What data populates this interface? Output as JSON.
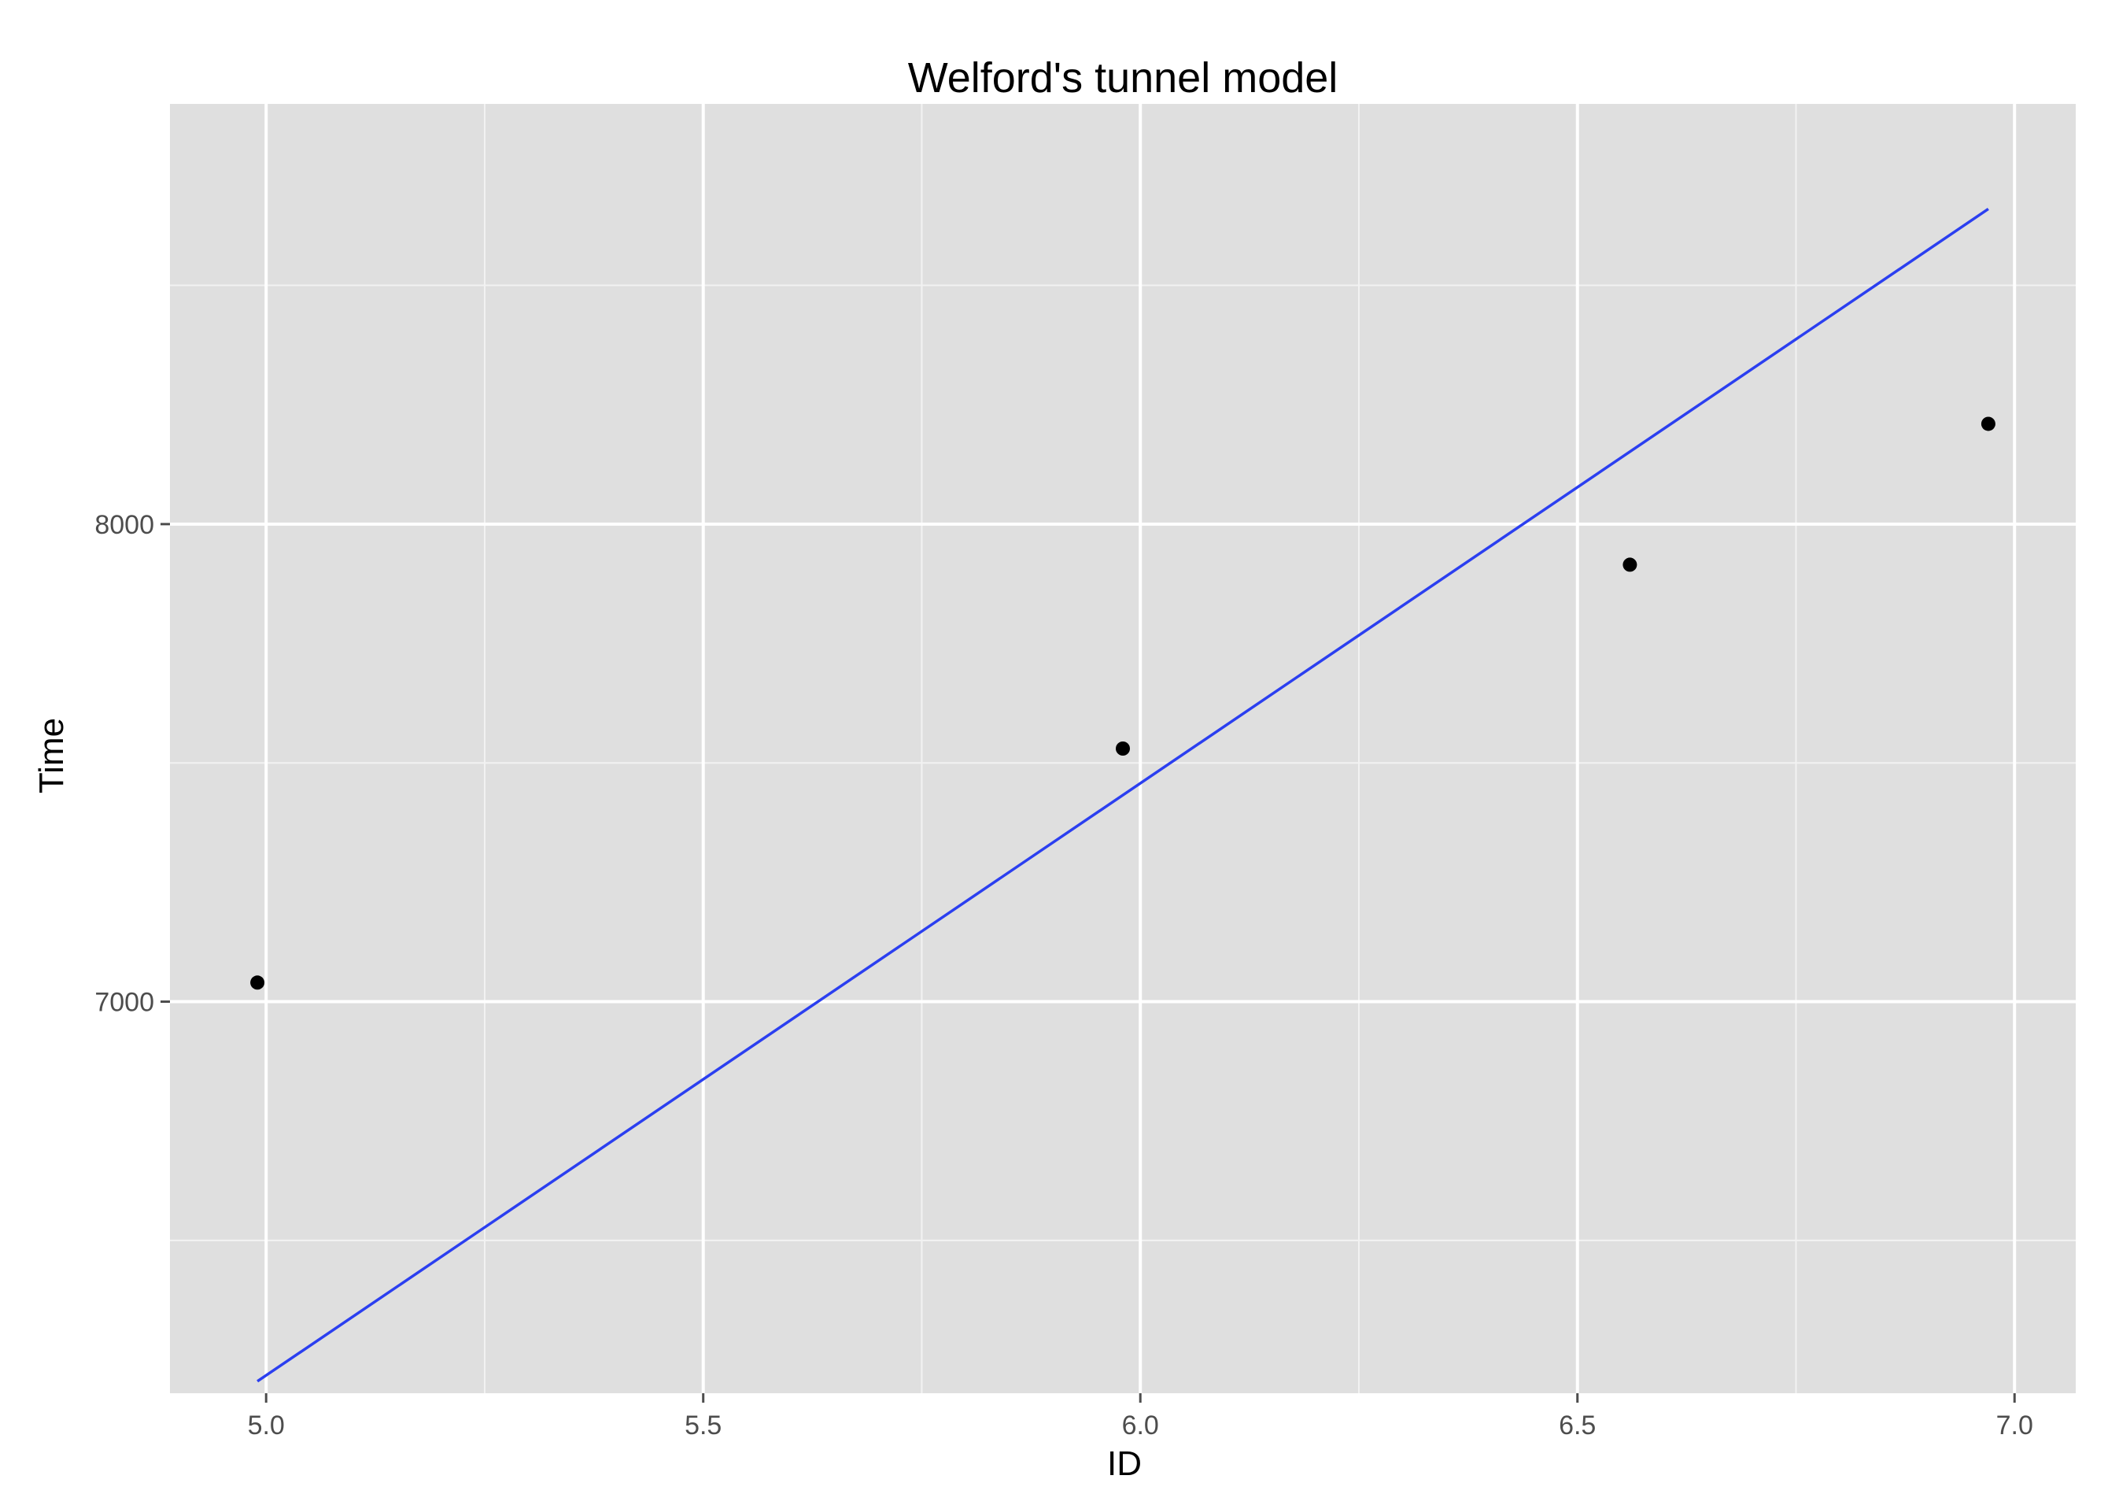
{
  "chart_data": {
    "type": "scatter",
    "title": "Welford's tunnel model",
    "xlabel": "ID",
    "ylabel": "Time",
    "xlim": [
      4.89,
      7.07
    ],
    "ylim": [
      6180,
      8880
    ],
    "x_ticks": [
      5.0,
      5.5,
      6.0,
      6.5,
      7.0
    ],
    "x_tick_labels": [
      "5.0",
      "5.5",
      "6.0",
      "6.5",
      "7.0"
    ],
    "y_ticks": [
      7000,
      8000
    ],
    "y_tick_labels": [
      "7000",
      "8000"
    ],
    "grid": true,
    "legend": "none",
    "colors": {
      "panel": "#dfdfdf",
      "grid_major": "#ffffff",
      "grid_minor": "#f2f2f2",
      "points": "#000000",
      "line": "#2b3ff0",
      "tick_text": "#4d4d4d"
    },
    "series": [
      {
        "type": "scatter",
        "x": [
          4.99,
          5.98,
          6.56,
          6.97
        ],
        "y": [
          7040,
          7530,
          7915,
          8210
        ]
      },
      {
        "type": "line",
        "x": [
          4.99,
          6.97
        ],
        "y": [
          6205,
          8660
        ]
      }
    ]
  }
}
